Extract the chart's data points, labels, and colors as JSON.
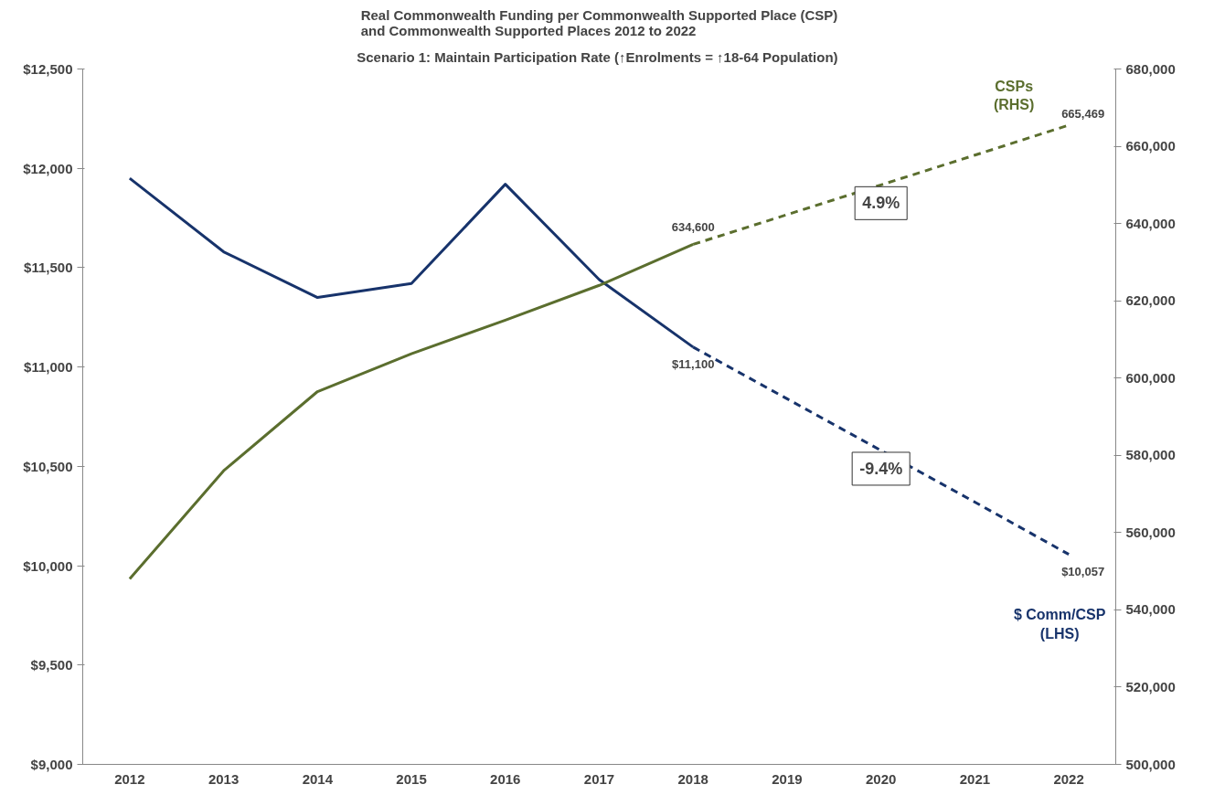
{
  "chart_data": {
    "type": "line",
    "title": "Real Commonwealth Funding per Commonwealth Supported Place (CSP)\nand Commonwealth Supported Places 2012 to 2022",
    "subtitle": "Scenario 1:  Maintain Participation Rate (↑Enrolments = ↑18-64 Population)",
    "categories": [
      "2012",
      "2013",
      "2014",
      "2015",
      "2016",
      "2017",
      "2018",
      "2019",
      "2020",
      "2021",
      "2022"
    ],
    "series": [
      {
        "color": "#17336b",
        "line_style": "solid",
        "values": [
          11950,
          11580,
          11350,
          11420,
          11920,
          11440,
          11100,
          null,
          null,
          null,
          null
        ]
      },
      {
        "name": "$ Comm/CSP\n(LHS)",
        "color": "#17336b",
        "line_style": "dashed",
        "values": [
          null,
          null,
          null,
          null,
          null,
          null,
          11100,
          10840,
          10580,
          10320,
          10057
        ],
        "value_labels": [
          null,
          null,
          null,
          null,
          null,
          null,
          "$11,100",
          null,
          null,
          null,
          "$10,057"
        ]
      },
      {
        "axis": "y2",
        "color": "#5b6e2e",
        "line_style": "solid",
        "values": [
          548000,
          576000,
          596500,
          606300,
          615000,
          624000,
          634600,
          null,
          null,
          null,
          null
        ]
      },
      {
        "name": "CSPs\n(RHS)",
        "axis": "y2",
        "color": "#5b6e2e",
        "line_style": "dashed",
        "values": [
          null,
          null,
          null,
          null,
          null,
          null,
          634600,
          642300,
          650000,
          657700,
          665469
        ],
        "value_labels": [
          null,
          null,
          null,
          null,
          null,
          null,
          "634,600",
          null,
          null,
          null,
          "665,469"
        ]
      }
    ],
    "annotations": [
      "-9.4%",
      "4.9%"
    ],
    "ylim": [
      9000,
      12500
    ],
    "yticks": [
      {
        "value": 9000,
        "label": "$9,000"
      },
      {
        "value": 9500,
        "label": "$9,500"
      },
      {
        "value": 10000,
        "label": "$10,000"
      },
      {
        "value": 10500,
        "label": "$10,500"
      },
      {
        "value": 11000,
        "label": "$11,000"
      },
      {
        "value": 11500,
        "label": "$11,500"
      },
      {
        "value": 12000,
        "label": "$12,000"
      },
      {
        "value": 12500,
        "label": "$12,500"
      }
    ],
    "y2lim": [
      500000,
      680000
    ],
    "y2ticks": [
      {
        "value": 500000,
        "label": "500,000"
      },
      {
        "value": 520000,
        "label": "520,000"
      },
      {
        "value": 540000,
        "label": "540,000"
      },
      {
        "value": 560000,
        "label": "560,000"
      },
      {
        "value": 580000,
        "label": "580,000"
      },
      {
        "value": 600000,
        "label": "600,000"
      },
      {
        "value": 620000,
        "label": "620,000"
      },
      {
        "value": 640000,
        "label": "640,000"
      },
      {
        "value": 660000,
        "label": "660,000"
      },
      {
        "value": 680000,
        "label": "680,000"
      }
    ],
    "grid": false,
    "marker": "none"
  }
}
